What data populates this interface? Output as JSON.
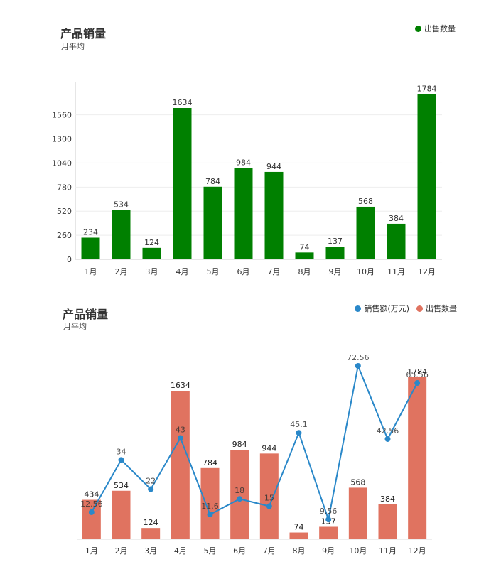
{
  "chart_data": [
    {
      "type": "bar",
      "title": "产品销量",
      "subtitle": "月平均",
      "categories": [
        "1月",
        "2月",
        "3月",
        "4月",
        "5月",
        "6月",
        "7月",
        "8月",
        "9月",
        "10月",
        "11月",
        "12月"
      ],
      "series": [
        {
          "name": "出售数量",
          "values": [
            234,
            534,
            124,
            1634,
            784,
            984,
            944,
            74,
            137,
            568,
            384,
            1784
          ],
          "color": "#008000"
        }
      ],
      "yticks": [
        0,
        260,
        520,
        780,
        1040,
        1300,
        1560
      ],
      "ylim": [
        0,
        1820
      ],
      "grid": true,
      "legend_position": "top-right"
    },
    {
      "type": "bar",
      "title": "产品销量",
      "subtitle": "月平均",
      "categories": [
        "1月",
        "2月",
        "3月",
        "4月",
        "5月",
        "6月",
        "7月",
        "8月",
        "9月",
        "10月",
        "11月",
        "12月"
      ],
      "series": [
        {
          "name": "销售额(万元)",
          "type": "line",
          "values": [
            12.56,
            34,
            22,
            43,
            11.6,
            18,
            15,
            45.1,
            9.56,
            72.56,
            42.56,
            65.56
          ],
          "color": "#2a88c9"
        },
        {
          "name": "出售数量",
          "type": "bar",
          "values": [
            434,
            534,
            124,
            1634,
            784,
            984,
            944,
            74,
            137,
            568,
            384,
            1784
          ],
          "color": "#e07360"
        }
      ],
      "grid": false,
      "legend_position": "top-right"
    }
  ]
}
